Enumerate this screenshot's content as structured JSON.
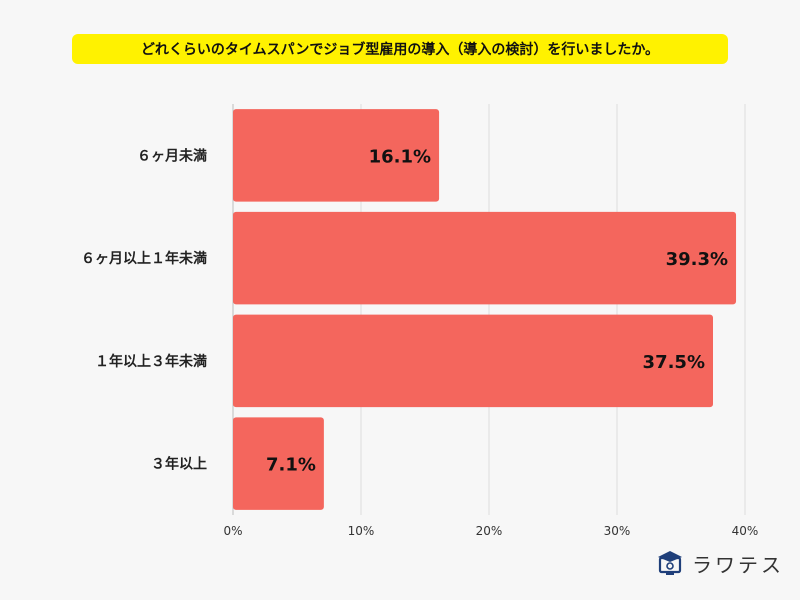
{
  "chart_data": {
    "type": "bar",
    "orientation": "horizontal",
    "title": "どれくらいのタイムスパンでジョブ型雇用の導入（導入の検討）を行いましたか。",
    "categories": [
      "６ヶ月未満",
      "６ヶ月以上１年未満",
      "１年以上３年未満",
      "３年以上"
    ],
    "values": [
      16.1,
      39.3,
      37.5,
      7.1
    ],
    "value_labels": [
      "16.1%",
      "39.3%",
      "37.5%",
      "7.1%"
    ],
    "xlim": [
      0,
      40
    ],
    "x_ticks": [
      "0%",
      "10%",
      "20%",
      "30%",
      "40%"
    ],
    "grid": "vertical",
    "bar_color": "#f4665d"
  },
  "brand": {
    "name": "ラワテス",
    "icon": "graduation-cap-monitor-icon"
  }
}
